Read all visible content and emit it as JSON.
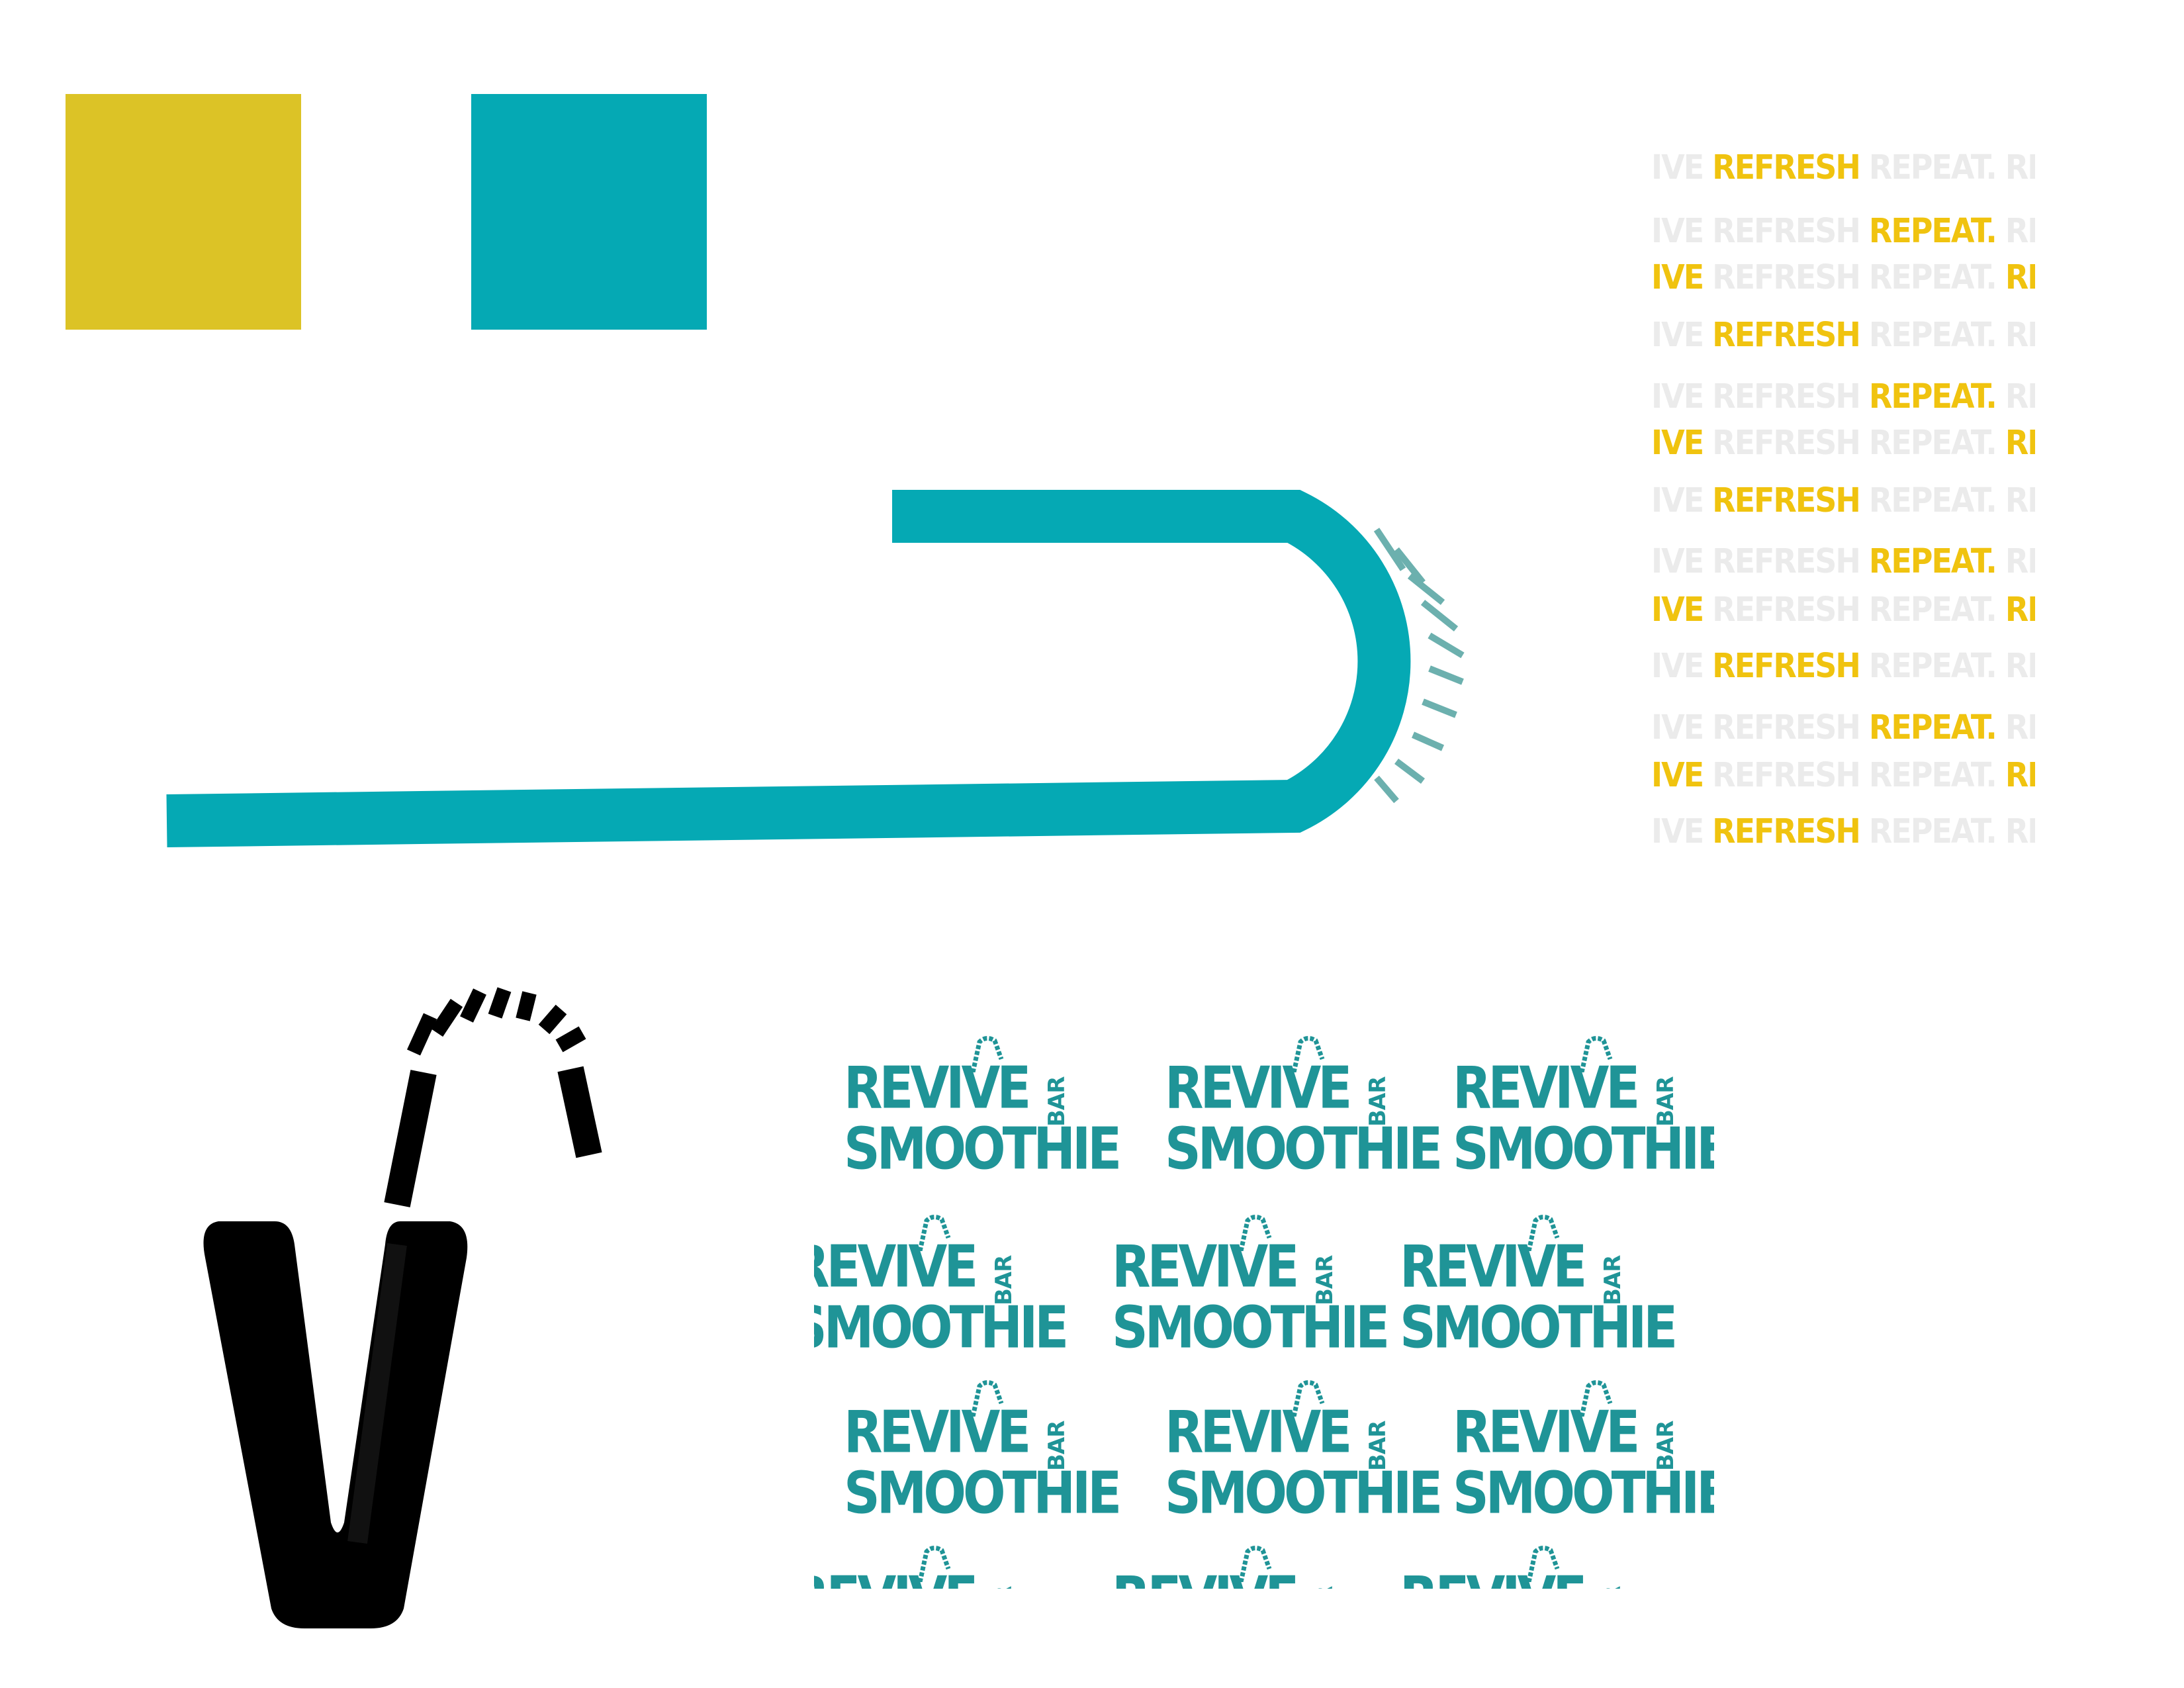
{
  "palette": {
    "yellow": "#dcc326",
    "teal": "#05a9b4",
    "black": "#000000"
  },
  "tagline": {
    "word_ive": "IVE",
    "word_refresh": "REFRESH",
    "word_repeat": "REPEAT.",
    "word_rev": "REV"
  },
  "logo": {
    "word_revive": "REVIVE",
    "word_smoothie": "SMOOTHIE",
    "word_bar": "BAR"
  },
  "icons": [
    "bendy-straw-icon",
    "cup-with-straw-icon",
    "straw-graphic"
  ]
}
